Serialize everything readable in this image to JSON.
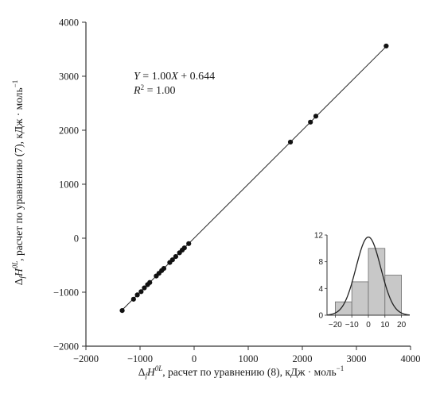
{
  "chart_data": [
    {
      "type": "scatter",
      "xlabel_parts": [
        "Δ",
        "f",
        "H",
        "0L",
        ", расчет по уравнению (8), кДж · моль",
        "−1"
      ],
      "ylabel_parts": [
        "Δ",
        "f",
        "H",
        "0L",
        ", расчет по уравнению (7), кДж · моль",
        "−1"
      ],
      "xlim": [
        -2000,
        4000
      ],
      "ylim": [
        -2000,
        4000
      ],
      "xticks": [
        "−2000",
        "−1000",
        "0",
        "1000",
        "2000",
        "3000",
        "4000"
      ],
      "yticks": [
        "−2000",
        "−1000",
        "0",
        "1000",
        "2000",
        "3000",
        "4000"
      ],
      "x_tick_values": [
        -2000,
        -1000,
        0,
        1000,
        2000,
        3000,
        4000
      ],
      "y_tick_values": [
        -2000,
        -1000,
        0,
        1000,
        2000,
        3000,
        4000
      ],
      "grid": false,
      "points": [
        [
          -1330,
          -1340
        ],
        [
          -1120,
          -1130
        ],
        [
          -1050,
          -1050
        ],
        [
          -980,
          -990
        ],
        [
          -920,
          -920
        ],
        [
          -860,
          -860
        ],
        [
          -820,
          -820
        ],
        [
          -700,
          -700
        ],
        [
          -650,
          -650
        ],
        [
          -600,
          -600
        ],
        [
          -560,
          -560
        ],
        [
          -450,
          -450
        ],
        [
          -400,
          -400
        ],
        [
          -340,
          -340
        ],
        [
          -270,
          -270
        ],
        [
          -220,
          -220
        ],
        [
          -180,
          -180
        ],
        [
          -100,
          -100
        ],
        [
          1780,
          1780
        ],
        [
          2150,
          2150
        ],
        [
          2250,
          2260
        ],
        [
          3550,
          3560
        ]
      ],
      "fit_line": {
        "slope": 1.0,
        "intercept": 0.644,
        "x_range": [
          -1330,
          3550
        ]
      },
      "annotation": {
        "equation": {
          "parts": [
            "Y",
            " = 1.00",
            "X",
            " + 0.644"
          ]
        },
        "r2": {
          "parts": [
            "R",
            "2",
            " = 1.00"
          ]
        }
      },
      "colors": {
        "points": "#111111",
        "line": "#222222",
        "axes": "#333333"
      }
    },
    {
      "type": "bar",
      "subtype": "histogram-with-normal-curve",
      "bins": [
        {
          "from": -20,
          "to": -10,
          "count": 2
        },
        {
          "from": -10,
          "to": 0,
          "count": 5
        },
        {
          "from": 0,
          "to": 10,
          "count": 10
        },
        {
          "from": 10,
          "to": 20,
          "count": 6
        }
      ],
      "xlim": [
        -25,
        25
      ],
      "ylim": [
        0,
        12
      ],
      "xticks": [
        "−20",
        "−10",
        "0",
        "10",
        "20"
      ],
      "yticks": [
        "0",
        "4",
        "8",
        "12"
      ],
      "x_tick_values": [
        -20,
        -10,
        0,
        10,
        20
      ],
      "y_tick_values": [
        0,
        4,
        8,
        12
      ],
      "normal_curve": {
        "mean": 0,
        "std": 7.5,
        "peak": 11.7
      },
      "colors": {
        "bars": "#c8c8c8",
        "bar_edge": "#6e6e6e",
        "curve": "#222222"
      }
    }
  ]
}
